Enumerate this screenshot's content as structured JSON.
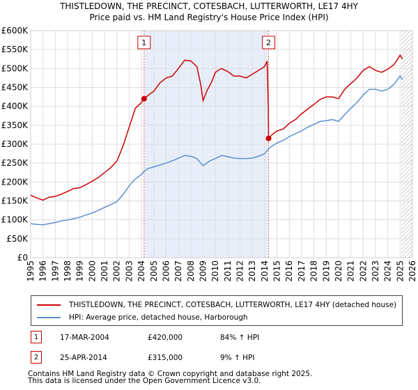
{
  "header": {
    "title_line1": "THISTLEDOWN, THE PRECINCT, COTESBACH, LUTTERWORTH, LE17 4HY",
    "title_line2": "Price paid vs. HM Land Registry's House Price Index (HPI)"
  },
  "chart_data": {
    "type": "line",
    "title": "THISTLEDOWN, THE PRECINCT, COTESBACH, LUTTERWORTH, LE17 4HY — Price paid vs. HM Land Registry's House Price Index (HPI)",
    "xlabel": "",
    "ylabel": "",
    "xlim": [
      1995,
      2026
    ],
    "ylim": [
      0,
      600000
    ],
    "y_ticks": [
      0,
      50000,
      100000,
      150000,
      200000,
      250000,
      300000,
      350000,
      400000,
      450000,
      500000,
      550000,
      600000
    ],
    "y_tick_labels": [
      "£0",
      "£50K",
      "£100K",
      "£150K",
      "£200K",
      "£250K",
      "£300K",
      "£350K",
      "£400K",
      "£450K",
      "£500K",
      "£550K",
      "£600K"
    ],
    "x_ticks": [
      1995,
      1996,
      1997,
      1998,
      1999,
      2000,
      2001,
      2002,
      2003,
      2004,
      2005,
      2006,
      2007,
      2008,
      2009,
      2010,
      2011,
      2012,
      2013,
      2014,
      2015,
      2016,
      2017,
      2018,
      2019,
      2020,
      2021,
      2022,
      2023,
      2024,
      2025,
      2026
    ],
    "grid": true,
    "shaded_period": [
      2004.21,
      2014.32
    ],
    "forecast_hatch_from": 2025.1,
    "series": [
      {
        "name": "THISTLEDOWN, THE PRECINCT, COTESBACH, LUTTERWORTH, LE17 4HY (detached house)",
        "color": "#cc0000",
        "points": [
          [
            1995.0,
            165000
          ],
          [
            1995.5,
            158000
          ],
          [
            1996.0,
            152000
          ],
          [
            1996.5,
            160000
          ],
          [
            1997.0,
            162000
          ],
          [
            1997.5,
            168000
          ],
          [
            1998.0,
            175000
          ],
          [
            1998.5,
            183000
          ],
          [
            1999.0,
            185000
          ],
          [
            1999.5,
            193000
          ],
          [
            2000.0,
            202000
          ],
          [
            2000.5,
            212000
          ],
          [
            2001.0,
            225000
          ],
          [
            2001.5,
            238000
          ],
          [
            2002.0,
            255000
          ],
          [
            2002.5,
            295000
          ],
          [
            2003.0,
            345000
          ],
          [
            2003.5,
            395000
          ],
          [
            2004.0,
            410000
          ],
          [
            2004.21,
            420000
          ],
          [
            2004.5,
            428000
          ],
          [
            2005.0,
            440000
          ],
          [
            2005.5,
            462000
          ],
          [
            2006.0,
            475000
          ],
          [
            2006.5,
            480000
          ],
          [
            2007.0,
            500000
          ],
          [
            2007.5,
            522000
          ],
          [
            2008.0,
            520000
          ],
          [
            2008.5,
            505000
          ],
          [
            2008.8,
            460000
          ],
          [
            2009.0,
            415000
          ],
          [
            2009.3,
            440000
          ],
          [
            2009.7,
            465000
          ],
          [
            2010.0,
            490000
          ],
          [
            2010.5,
            500000
          ],
          [
            2011.0,
            492000
          ],
          [
            2011.5,
            480000
          ],
          [
            2012.0,
            480000
          ],
          [
            2012.5,
            475000
          ],
          [
            2013.0,
            485000
          ],
          [
            2013.5,
            495000
          ],
          [
            2014.0,
            505000
          ],
          [
            2014.2,
            520000
          ],
          [
            2014.3,
            390000
          ],
          [
            2014.32,
            315000
          ],
          [
            2014.6,
            325000
          ],
          [
            2015.0,
            335000
          ],
          [
            2015.5,
            340000
          ],
          [
            2016.0,
            355000
          ],
          [
            2016.5,
            365000
          ],
          [
            2017.0,
            380000
          ],
          [
            2017.5,
            393000
          ],
          [
            2018.0,
            405000
          ],
          [
            2018.5,
            418000
          ],
          [
            2019.0,
            425000
          ],
          [
            2019.5,
            425000
          ],
          [
            2020.0,
            420000
          ],
          [
            2020.5,
            445000
          ],
          [
            2021.0,
            460000
          ],
          [
            2021.5,
            475000
          ],
          [
            2022.0,
            495000
          ],
          [
            2022.5,
            505000
          ],
          [
            2023.0,
            495000
          ],
          [
            2023.5,
            490000
          ],
          [
            2024.0,
            498000
          ],
          [
            2024.5,
            510000
          ],
          [
            2025.0,
            535000
          ],
          [
            2025.2,
            525000
          ]
        ]
      },
      {
        "name": "HPI: Average price, detached house, Harborough",
        "color": "#5b8fd0",
        "points": [
          [
            1995.0,
            90000
          ],
          [
            1995.5,
            88000
          ],
          [
            1996.0,
            87000
          ],
          [
            1996.5,
            90000
          ],
          [
            1997.0,
            93000
          ],
          [
            1997.5,
            97000
          ],
          [
            1998.0,
            100000
          ],
          [
            1998.5,
            103000
          ],
          [
            1999.0,
            107000
          ],
          [
            1999.5,
            113000
          ],
          [
            2000.0,
            118000
          ],
          [
            2000.5,
            125000
          ],
          [
            2001.0,
            133000
          ],
          [
            2001.5,
            140000
          ],
          [
            2002.0,
            148000
          ],
          [
            2002.5,
            167000
          ],
          [
            2003.0,
            190000
          ],
          [
            2003.5,
            208000
          ],
          [
            2004.0,
            220000
          ],
          [
            2004.21,
            228000
          ],
          [
            2004.5,
            235000
          ],
          [
            2005.0,
            240000
          ],
          [
            2005.5,
            245000
          ],
          [
            2006.0,
            250000
          ],
          [
            2006.5,
            256000
          ],
          [
            2007.0,
            263000
          ],
          [
            2007.5,
            270000
          ],
          [
            2008.0,
            268000
          ],
          [
            2008.5,
            262000
          ],
          [
            2009.0,
            243000
          ],
          [
            2009.5,
            255000
          ],
          [
            2010.0,
            262000
          ],
          [
            2010.5,
            270000
          ],
          [
            2011.0,
            267000
          ],
          [
            2011.5,
            263000
          ],
          [
            2012.0,
            262000
          ],
          [
            2012.5,
            262000
          ],
          [
            2013.0,
            263000
          ],
          [
            2013.5,
            268000
          ],
          [
            2014.0,
            275000
          ],
          [
            2014.32,
            288000
          ],
          [
            2014.6,
            295000
          ],
          [
            2015.0,
            303000
          ],
          [
            2015.5,
            310000
          ],
          [
            2016.0,
            320000
          ],
          [
            2016.5,
            328000
          ],
          [
            2017.0,
            335000
          ],
          [
            2017.5,
            345000
          ],
          [
            2018.0,
            352000
          ],
          [
            2018.5,
            360000
          ],
          [
            2019.0,
            362000
          ],
          [
            2019.5,
            365000
          ],
          [
            2020.0,
            360000
          ],
          [
            2020.5,
            378000
          ],
          [
            2021.0,
            395000
          ],
          [
            2021.5,
            410000
          ],
          [
            2022.0,
            430000
          ],
          [
            2022.5,
            445000
          ],
          [
            2023.0,
            445000
          ],
          [
            2023.5,
            440000
          ],
          [
            2024.0,
            445000
          ],
          [
            2024.5,
            458000
          ],
          [
            2025.0,
            480000
          ],
          [
            2025.2,
            470000
          ]
        ]
      }
    ],
    "sales": [
      {
        "label": "1",
        "date": "17-MAR-2004",
        "x": 2004.21,
        "price_value": 420000,
        "price": "£420,000",
        "hpi": "84% ↑ HPI"
      },
      {
        "label": "2",
        "date": "25-APR-2014",
        "x": 2014.32,
        "price_value": 315000,
        "price": "£315,000",
        "hpi": "9% ↑ HPI"
      }
    ]
  },
  "legend": {
    "entries": [
      {
        "label": "THISTLEDOWN, THE PRECINCT, COTESBACH, LUTTERWORTH, LE17 4HY (detached house)",
        "color": "#cc0000"
      },
      {
        "label": "HPI: Average price, detached house, Harborough",
        "color": "#5b8fd0"
      }
    ]
  },
  "footer": {
    "line1": "Contains HM Land Registry data © Crown copyright and database right 2025.",
    "line2": "This data is licensed under the Open Government Licence v3.0."
  }
}
